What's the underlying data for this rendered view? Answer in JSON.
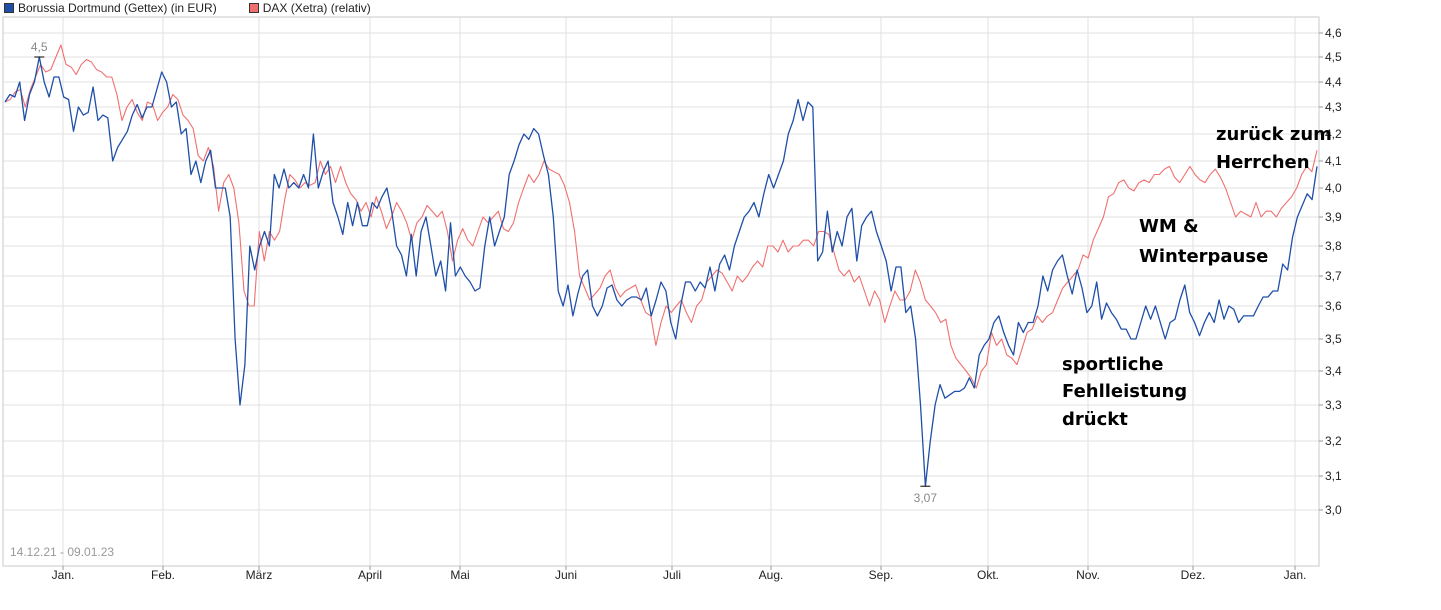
{
  "legend": [
    {
      "label": "Borussia Dortmund (Gettex) (in EUR)",
      "color": "#1f4fa8"
    },
    {
      "label": "DAX (Xetra) (relativ)",
      "color": "#f07070"
    }
  ],
  "date_range": "14.12.21 - 09.01.23",
  "annotations": {
    "sportliche": [
      "sportliche",
      "Fehlleistung",
      "drückt"
    ],
    "wm": [
      "WM &",
      "Winterpause"
    ],
    "herrchen": [
      "zurück zum",
      "Herrchen"
    ]
  },
  "chart_data": {
    "type": "line",
    "x_ticks": [
      "Jan.",
      "Feb.",
      "März",
      "April",
      "Mai",
      "Juni",
      "Juli",
      "Aug.",
      "Sep.",
      "Okt.",
      "Nov.",
      "Dez.",
      "Jan."
    ],
    "y_ticks": [
      "3,0",
      "3,1",
      "3,2",
      "3,3",
      "3,4",
      "3,5",
      "3,6",
      "3,7",
      "3,8",
      "3,9",
      "4,0",
      "4,1",
      "4,2",
      "4,3",
      "4,4",
      "4,5",
      "4,6"
    ],
    "ylim": [
      2.9,
      4.65
    ],
    "max_label": "4,5",
    "min_label": "3,07",
    "grid": true,
    "legend_position": "top-left",
    "series": [
      {
        "name": "Borussia Dortmund (Gettex) (in EUR)",
        "color": "#1f4fa8",
        "values": [
          4.32,
          4.35,
          4.34,
          4.4,
          4.25,
          4.35,
          4.4,
          4.5,
          4.4,
          4.34,
          4.42,
          4.42,
          4.34,
          4.33,
          4.21,
          4.3,
          4.27,
          4.28,
          4.38,
          4.25,
          4.27,
          4.26,
          4.1,
          4.15,
          4.18,
          4.21,
          4.27,
          4.31,
          4.26,
          4.3,
          4.3,
          4.37,
          4.44,
          4.4,
          4.3,
          4.32,
          4.2,
          4.22,
          4.05,
          4.1,
          4.02,
          4.1,
          4.14,
          4.0,
          4.0,
          4.0,
          3.9,
          3.5,
          3.3,
          3.42,
          3.8,
          3.72,
          3.8,
          3.85,
          3.8,
          4.05,
          4.0,
          4.07,
          4.0,
          4.02,
          4.0,
          4.05,
          4.0,
          4.2,
          4.0,
          4.06,
          4.1,
          3.95,
          3.9,
          3.84,
          3.95,
          3.87,
          3.95,
          3.87,
          3.87,
          3.95,
          3.93,
          3.97,
          4.0,
          3.92,
          3.8,
          3.77,
          3.7,
          3.84,
          3.7,
          3.85,
          3.9,
          3.8,
          3.7,
          3.75,
          3.65,
          3.88,
          3.7,
          3.73,
          3.7,
          3.68,
          3.65,
          3.66,
          3.8,
          3.9,
          3.8,
          3.85,
          3.9,
          4.05,
          4.1,
          4.16,
          4.2,
          4.18,
          4.22,
          4.2,
          4.12,
          4.05,
          3.9,
          3.65,
          3.6,
          3.67,
          3.57,
          3.64,
          3.7,
          3.72,
          3.6,
          3.57,
          3.6,
          3.66,
          3.67,
          3.62,
          3.6,
          3.62,
          3.63,
          3.63,
          3.62,
          3.66,
          3.57,
          3.62,
          3.68,
          3.65,
          3.55,
          3.5,
          3.6,
          3.68,
          3.68,
          3.65,
          3.68,
          3.66,
          3.73,
          3.65,
          3.74,
          3.77,
          3.72,
          3.8,
          3.85,
          3.9,
          3.92,
          3.95,
          3.9,
          3.98,
          4.05,
          4.0,
          4.05,
          4.1,
          4.2,
          4.25,
          4.33,
          4.25,
          4.32,
          4.3,
          3.75,
          3.78,
          3.92,
          3.78,
          3.85,
          3.8,
          3.9,
          3.93,
          3.75,
          3.87,
          3.9,
          3.92,
          3.85,
          3.8,
          3.75,
          3.65,
          3.73,
          3.73,
          3.58,
          3.6,
          3.5,
          3.3,
          3.07,
          3.2,
          3.3,
          3.36,
          3.32,
          3.33,
          3.34,
          3.34,
          3.35,
          3.38,
          3.35,
          3.45,
          3.48,
          3.5,
          3.55,
          3.57,
          3.52,
          3.48,
          3.45,
          3.55,
          3.52,
          3.55,
          3.55,
          3.6,
          3.7,
          3.65,
          3.72,
          3.75,
          3.77,
          3.7,
          3.64,
          3.72,
          3.66,
          3.58,
          3.6,
          3.68,
          3.56,
          3.61,
          3.58,
          3.56,
          3.53,
          3.53,
          3.5,
          3.5,
          3.55,
          3.6,
          3.56,
          3.6,
          3.55,
          3.5,
          3.55,
          3.56,
          3.62,
          3.67,
          3.58,
          3.55,
          3.51,
          3.55,
          3.58,
          3.55,
          3.62,
          3.56,
          3.6,
          3.59,
          3.55,
          3.57,
          3.57,
          3.57,
          3.6,
          3.63,
          3.63,
          3.65,
          3.65,
          3.74,
          3.72,
          3.83,
          3.9,
          3.94,
          3.98,
          3.96,
          4.08
        ]
      },
      {
        "name": "DAX (Xetra) (relativ)",
        "color": "#f07070",
        "values": [
          4.32,
          4.33,
          4.36,
          4.37,
          4.3,
          4.37,
          4.42,
          4.47,
          4.44,
          4.45,
          4.5,
          4.55,
          4.47,
          4.46,
          4.43,
          4.47,
          4.49,
          4.48,
          4.45,
          4.44,
          4.42,
          4.42,
          4.35,
          4.25,
          4.3,
          4.33,
          4.28,
          4.25,
          4.32,
          4.31,
          4.25,
          4.28,
          4.3,
          4.35,
          4.33,
          4.27,
          4.25,
          4.22,
          4.12,
          4.1,
          4.15,
          4.08,
          3.92,
          4.02,
          4.05,
          4.0,
          3.88,
          3.65,
          3.6,
          3.6,
          3.85,
          3.75,
          3.85,
          3.82,
          3.85,
          3.96,
          4.05,
          4.03,
          4.0,
          4.02,
          4.01,
          4.02,
          4.1,
          4.05,
          4.08,
          4.02,
          4.08,
          4.02,
          3.98,
          3.96,
          3.92,
          3.95,
          3.9,
          3.97,
          3.92,
          3.86,
          3.9,
          3.95,
          3.92,
          3.88,
          3.82,
          3.88,
          3.9,
          3.94,
          3.92,
          3.9,
          3.92,
          3.85,
          3.75,
          3.82,
          3.86,
          3.82,
          3.8,
          3.85,
          3.9,
          3.88,
          3.9,
          3.92,
          3.86,
          3.85,
          3.88,
          3.95,
          4.0,
          4.05,
          4.02,
          4.05,
          4.1,
          4.07,
          4.06,
          4.05,
          4.01,
          3.95,
          3.85,
          3.7,
          3.66,
          3.62,
          3.64,
          3.66,
          3.7,
          3.72,
          3.66,
          3.63,
          3.65,
          3.66,
          3.67,
          3.62,
          3.58,
          3.57,
          3.48,
          3.55,
          3.6,
          3.58,
          3.6,
          3.62,
          3.58,
          3.55,
          3.6,
          3.62,
          3.68,
          3.7,
          3.72,
          3.71,
          3.68,
          3.65,
          3.7,
          3.68,
          3.7,
          3.73,
          3.75,
          3.73,
          3.8,
          3.8,
          3.78,
          3.82,
          3.78,
          3.8,
          3.8,
          3.82,
          3.82,
          3.8,
          3.85,
          3.85,
          3.84,
          3.78,
          3.72,
          3.7,
          3.72,
          3.68,
          3.7,
          3.65,
          3.6,
          3.65,
          3.62,
          3.55,
          3.6,
          3.65,
          3.62,
          3.62,
          3.65,
          3.72,
          3.68,
          3.62,
          3.6,
          3.58,
          3.55,
          3.56,
          3.48,
          3.44,
          3.42,
          3.4,
          3.38,
          3.35,
          3.4,
          3.42,
          3.52,
          3.48,
          3.5,
          3.45,
          3.44,
          3.42,
          3.47,
          3.52,
          3.53,
          3.57,
          3.55,
          3.57,
          3.58,
          3.62,
          3.66,
          3.68,
          3.7,
          3.72,
          3.77,
          3.76,
          3.82,
          3.86,
          3.9,
          3.97,
          3.98,
          4.02,
          4.03,
          4.0,
          3.99,
          4.02,
          4.03,
          4.02,
          4.05,
          4.05,
          4.07,
          4.08,
          4.04,
          4.02,
          4.05,
          4.08,
          4.05,
          4.03,
          4.02,
          4.05,
          4.07,
          4.04,
          4.0,
          3.95,
          3.9,
          3.92,
          3.91,
          3.9,
          3.95,
          3.9,
          3.92,
          3.92,
          3.9,
          3.93,
          3.95,
          3.97,
          4.0,
          4.05,
          4.08,
          4.06,
          4.14
        ]
      }
    ]
  }
}
